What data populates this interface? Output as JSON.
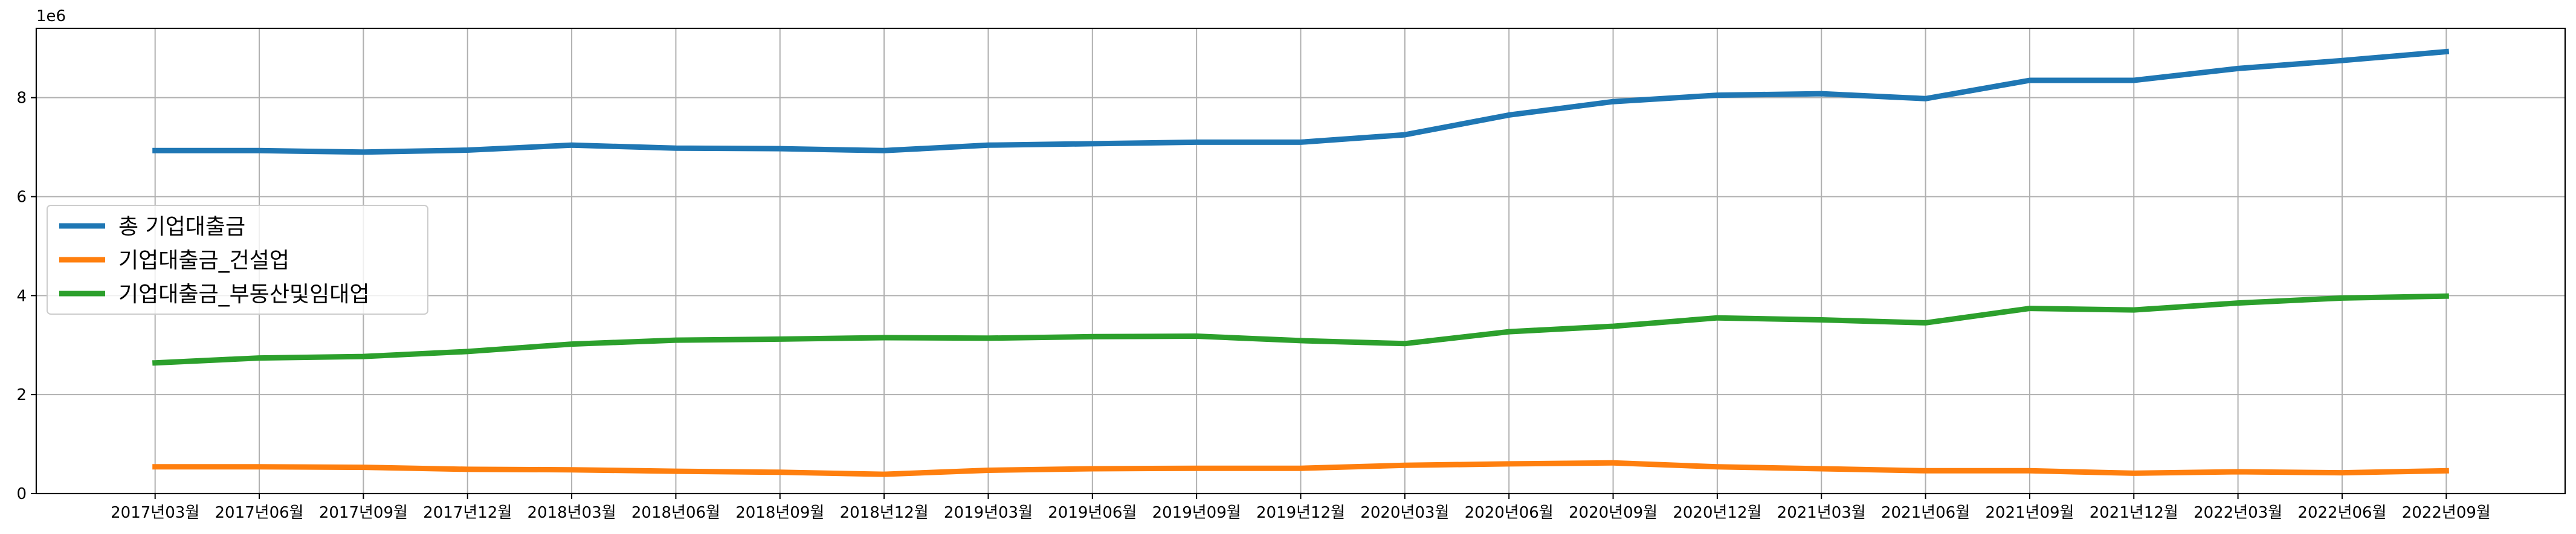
{
  "chart_data": {
    "type": "line",
    "title": "",
    "xlabel": "",
    "ylabel": "",
    "y_offset_label": "1e6",
    "ylim": [
      0,
      9.4
    ],
    "yticks": [
      0,
      2,
      4,
      6,
      8
    ],
    "ytick_labels": [
      "0",
      "2",
      "4",
      "6",
      "8"
    ],
    "y_unit_multiplier": 1000000,
    "grid": true,
    "legend_position": "center-left",
    "categories": [
      "2017년03월",
      "2017년06월",
      "2017년09월",
      "2017년12월",
      "2018년03월",
      "2018년06월",
      "2018년09월",
      "2018년12월",
      "2019년03월",
      "2019년06월",
      "2019년09월",
      "2019년12월",
      "2020년03월",
      "2020년06월",
      "2020년09월",
      "2020년12월",
      "2021년03월",
      "2021년06월",
      "2021년09월",
      "2021년12월",
      "2022년03월",
      "2022년06월",
      "2022년09월"
    ],
    "series": [
      {
        "name": "총 기업대출금",
        "color": "#1f77b4",
        "values": [
          6.93,
          6.93,
          6.9,
          6.94,
          7.04,
          6.98,
          6.97,
          6.93,
          7.04,
          7.07,
          7.1,
          7.1,
          7.25,
          7.65,
          7.92,
          8.05,
          8.08,
          7.98,
          8.35,
          8.35,
          8.59,
          8.75,
          8.93
        ]
      },
      {
        "name": "기업대출금_건설업",
        "color": "#ff7f0e",
        "values": [
          0.54,
          0.54,
          0.53,
          0.49,
          0.48,
          0.45,
          0.43,
          0.39,
          0.47,
          0.5,
          0.51,
          0.51,
          0.57,
          0.6,
          0.62,
          0.54,
          0.5,
          0.46,
          0.46,
          0.41,
          0.44,
          0.42,
          0.46
        ]
      },
      {
        "name": "기업대출금_부동산및임대업",
        "color": "#2ca02c",
        "values": [
          2.64,
          2.74,
          2.77,
          2.87,
          3.02,
          3.1,
          3.12,
          3.15,
          3.14,
          3.17,
          3.18,
          3.09,
          3.03,
          3.27,
          3.38,
          3.55,
          3.51,
          3.45,
          3.74,
          3.71,
          3.85,
          3.95,
          3.99
        ]
      }
    ]
  }
}
